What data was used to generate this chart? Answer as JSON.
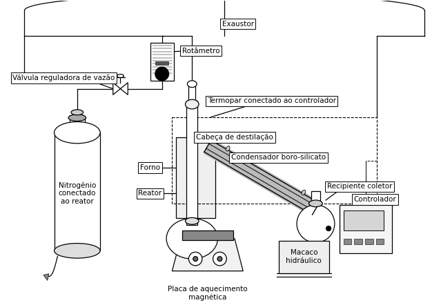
{
  "bg": "#ffffff",
  "labels": {
    "exaustor": "Exaustor",
    "rotametro": "Rotâmetro",
    "valvula": "Válvula reguladora de vazão",
    "termopar": "Termopar conectado ao controlador",
    "cabeca": "Cabeça de destilação",
    "condensador": "Condensador boro-silicato",
    "forno": "Forno",
    "reator": "Reator",
    "recipiente": "Recipiente coletor",
    "controlador": "Controlador",
    "macaco": "Macaco\nhidráulico",
    "placa": "Placa de aquecimento\nmagnética",
    "nitrogenio": "Nitrogênio\nconectado\nao reator"
  }
}
